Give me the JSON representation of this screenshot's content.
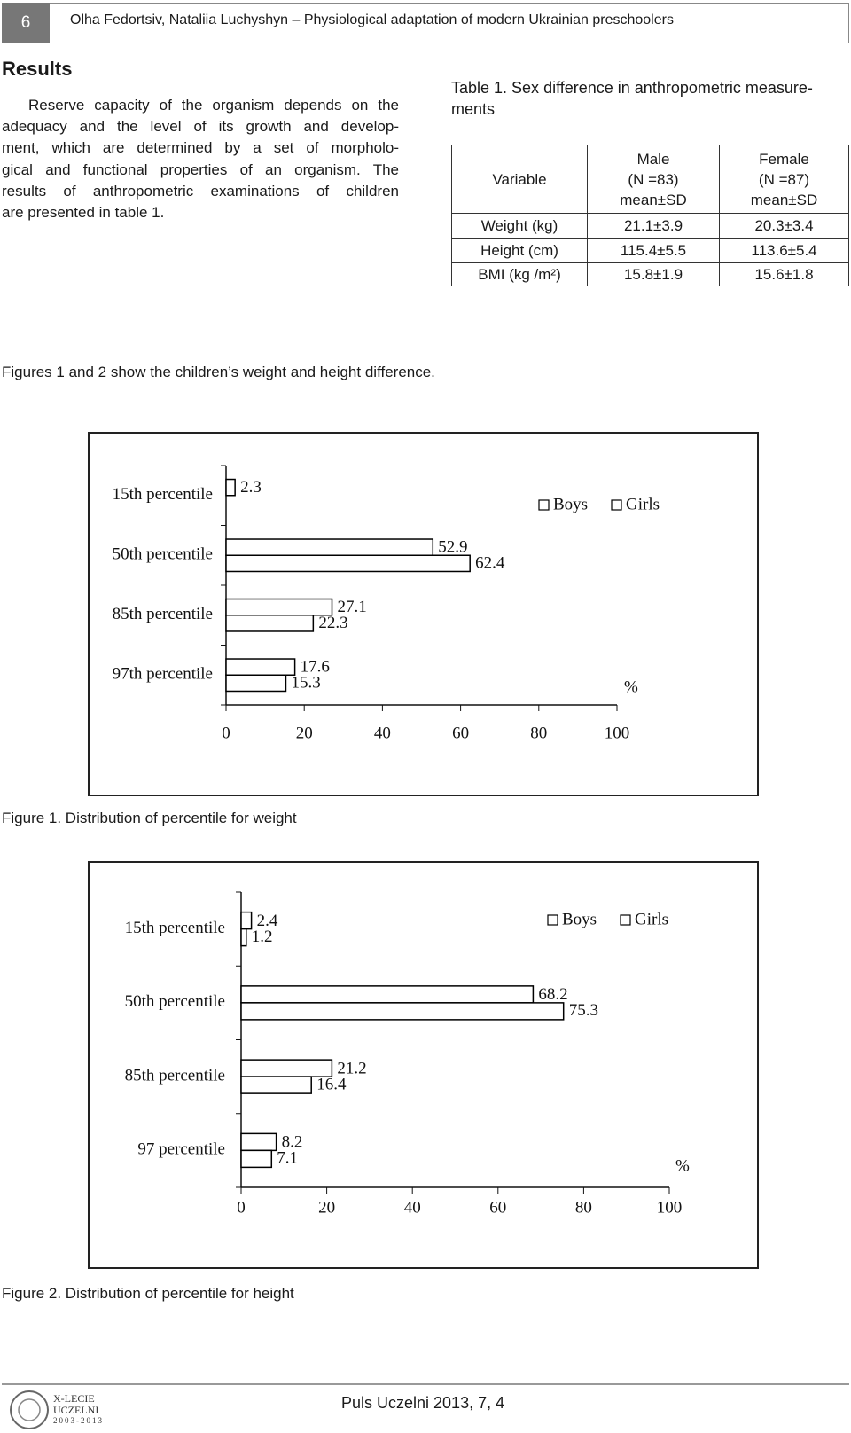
{
  "header": {
    "page_number": "6",
    "running_title": "Olha Fedortsiv, Nataliia Luchyshyn – Physiological adaptation of modern Ukrainian preschoolers"
  },
  "results": {
    "heading": "Results",
    "lines": [
      "Reserve capacity of the organism depends on the",
      "adequacy and the level of its growth and develop-",
      "ment, which are determined by a set of morpholo-",
      "gical and functional properties of an organism. The",
      "results of anthropometric examinations of children",
      "are presented in table 1."
    ]
  },
  "table": {
    "caption_lines": [
      "Table 1. Sex difference in anthropometric measure-",
      "ments"
    ],
    "header": [
      [
        "Variable"
      ],
      [
        "Male",
        "(N =83)",
        "mean±SD"
      ],
      [
        "Female",
        "(N =87)",
        "mean±SD"
      ]
    ],
    "rows": [
      [
        "Weight (kg)",
        "21.1±3.9",
        "20.3±3.4"
      ],
      [
        "Height (cm)",
        "115.4±5.5",
        "113.6±5.4"
      ],
      [
        "BMI (kg /m²)",
        "15.8±1.9",
        "15.6±1.8"
      ]
    ]
  },
  "figures_text": "Figures 1 and 2 show the children’s weight and height difference.",
  "chart_data": [
    {
      "type": "bar",
      "orientation": "horizontal",
      "caption": "Figure 1. Distribution of percentile for weight",
      "categories": [
        "15th percentile",
        "50th percentile",
        "85th percentile",
        "97th percentile"
      ],
      "series": [
        {
          "name": "Boys",
          "color": "#ffffff",
          "values": [
            2.3,
            52.9,
            27.1,
            17.6
          ]
        },
        {
          "name": "Girls",
          "color": "#ffffff",
          "values": [
            null,
            62.4,
            22.3,
            15.3
          ]
        }
      ],
      "edge_color": "#000000",
      "xlim": [
        0,
        100
      ],
      "xticks": [
        0,
        20,
        40,
        60,
        80,
        100
      ],
      "x_unit": "%",
      "legend": "upper right"
    },
    {
      "type": "bar",
      "orientation": "horizontal",
      "caption": "Figure 2. Distribution of percentile for height",
      "categories": [
        "15th percentile",
        "50th percentile",
        "85th percentile",
        "97 percentile"
      ],
      "series": [
        {
          "name": "Boys",
          "color": "#ffffff",
          "values": [
            2.4,
            68.2,
            21.2,
            8.2
          ]
        },
        {
          "name": "Girls",
          "color": "#ffffff",
          "values": [
            1.2,
            75.3,
            16.4,
            7.1
          ]
        }
      ],
      "edge_color": "#000000",
      "xlim": [
        0,
        100
      ],
      "xticks": [
        0,
        20,
        40,
        60,
        80,
        100
      ],
      "x_unit": "%",
      "legend": "upper right"
    }
  ],
  "footer": {
    "journal": "Puls Uczelni 2013, 7, 4",
    "logo_lines": [
      "X-LECIE",
      "UCZELNI",
      "2003-2013"
    ]
  }
}
